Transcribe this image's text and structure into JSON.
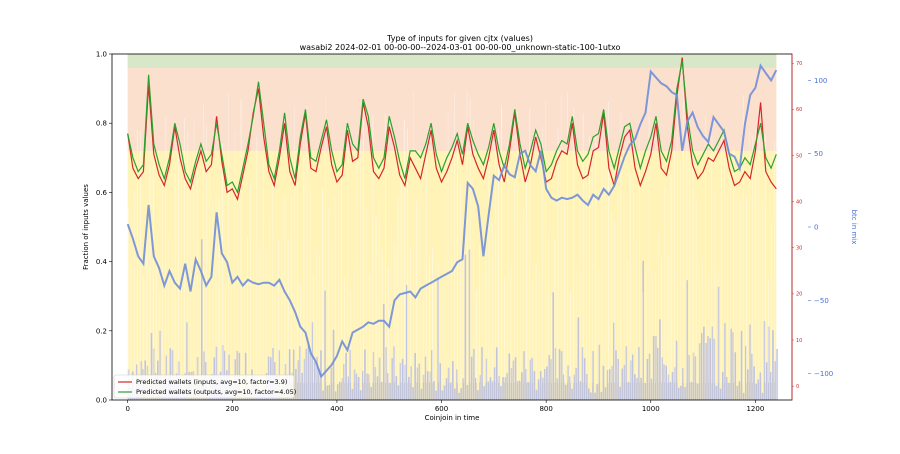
{
  "chart_data": {
    "type": "line",
    "title": "Type of inputs for given cjtx (values)",
    "subtitle": "wasabi2 2024-02-01 00-00-00--2024-03-01 00-00-00_unknown-static-100-1utxo",
    "xlabel": "Coinjoin in time",
    "ylabel": "Fraction of inputs values",
    "y2label": "btc in mix",
    "xlim": [
      -30,
      1270
    ],
    "ylim": [
      0,
      1.0
    ],
    "y2lim": [
      -118,
      118
    ],
    "x_ticks": [
      "0",
      "200",
      "400",
      "600",
      "800",
      "1000",
      "1200"
    ],
    "y_ticks": [
      "0.0",
      "0.2",
      "0.4",
      "0.6",
      "0.8",
      "1.0"
    ],
    "y2_ticks": [
      "−100",
      "−50",
      "0",
      "50",
      "100"
    ],
    "y3_ticks": [
      "0",
      "10",
      "20",
      "30",
      "40",
      "50",
      "60",
      "70"
    ],
    "legend_position": "lower-left",
    "colors": {
      "red": "#d62728",
      "green": "#2ca02c",
      "blue_line": "#6f8ed8",
      "yellow_band": "#fff3b8",
      "pink_band": "#fbd9d6",
      "blue_bars": "#8f9cf6",
      "axis_right_blue": "#4a6fd8"
    },
    "series": [
      {
        "name": "Predicted wallets (inputs, avg=10, factor=3.9)",
        "color": "#d62728",
        "x": [
          0,
          10,
          20,
          30,
          40,
          50,
          60,
          70,
          80,
          90,
          100,
          110,
          120,
          130,
          140,
          150,
          160,
          170,
          180,
          190,
          200,
          210,
          220,
          230,
          240,
          250,
          260,
          270,
          280,
          290,
          300,
          310,
          320,
          330,
          340,
          350,
          360,
          370,
          380,
          390,
          400,
          410,
          420,
          430,
          440,
          450,
          460,
          470,
          480,
          490,
          500,
          510,
          520,
          530,
          540,
          550,
          560,
          570,
          580,
          590,
          600,
          610,
          620,
          630,
          640,
          650,
          660,
          670,
          680,
          690,
          700,
          710,
          720,
          730,
          740,
          750,
          760,
          770,
          780,
          790,
          800,
          810,
          820,
          830,
          840,
          850,
          860,
          870,
          880,
          890,
          900,
          910,
          920,
          930,
          940,
          950,
          960,
          970,
          980,
          990,
          1000,
          1010,
          1020,
          1030,
          1040,
          1050,
          1060,
          1070,
          1080,
          1090,
          1100,
          1110,
          1120,
          1130,
          1140,
          1150,
          1160,
          1170,
          1180,
          1190,
          1200,
          1210,
          1220,
          1230,
          1240
        ],
        "values": [
          0.77,
          0.67,
          0.64,
          0.66,
          0.91,
          0.71,
          0.65,
          0.62,
          0.68,
          0.79,
          0.7,
          0.64,
          0.61,
          0.67,
          0.72,
          0.66,
          0.68,
          0.82,
          0.69,
          0.6,
          0.61,
          0.58,
          0.65,
          0.72,
          0.83,
          0.9,
          0.76,
          0.66,
          0.62,
          0.7,
          0.8,
          0.66,
          0.62,
          0.74,
          0.83,
          0.67,
          0.66,
          0.73,
          0.79,
          0.68,
          0.63,
          0.65,
          0.78,
          0.69,
          0.7,
          0.86,
          0.79,
          0.66,
          0.64,
          0.67,
          0.79,
          0.73,
          0.65,
          0.62,
          0.7,
          0.67,
          0.64,
          0.71,
          0.78,
          0.67,
          0.63,
          0.66,
          0.7,
          0.75,
          0.68,
          0.79,
          0.71,
          0.67,
          0.64,
          0.7,
          0.78,
          0.68,
          0.63,
          0.72,
          0.83,
          0.71,
          0.63,
          0.68,
          0.76,
          0.7,
          0.63,
          0.64,
          0.69,
          0.72,
          0.71,
          0.8,
          0.68,
          0.64,
          0.65,
          0.72,
          0.73,
          0.83,
          0.67,
          0.62,
          0.7,
          0.76,
          0.78,
          0.67,
          0.62,
          0.66,
          0.71,
          0.8,
          0.67,
          0.65,
          0.72,
          0.88,
          0.99,
          0.79,
          0.68,
          0.64,
          0.66,
          0.7,
          0.69,
          0.72,
          0.75,
          0.67,
          0.62,
          0.63,
          0.66,
          0.64,
          0.72,
          0.86,
          0.66,
          0.63,
          0.61
        ]
      },
      {
        "name": "Predicted wallets (outputs, avg=10, factor=4.05)",
        "color": "#2ca02c",
        "x": [
          0,
          10,
          20,
          30,
          40,
          50,
          60,
          70,
          80,
          90,
          100,
          110,
          120,
          130,
          140,
          150,
          160,
          170,
          180,
          190,
          200,
          210,
          220,
          230,
          240,
          250,
          260,
          270,
          280,
          290,
          300,
          310,
          320,
          330,
          340,
          350,
          360,
          370,
          380,
          390,
          400,
          410,
          420,
          430,
          440,
          450,
          460,
          470,
          480,
          490,
          500,
          510,
          520,
          530,
          540,
          550,
          560,
          570,
          580,
          590,
          600,
          610,
          620,
          630,
          640,
          650,
          660,
          670,
          680,
          690,
          700,
          710,
          720,
          730,
          740,
          750,
          760,
          770,
          780,
          790,
          800,
          810,
          820,
          830,
          840,
          850,
          860,
          870,
          880,
          890,
          900,
          910,
          920,
          930,
          940,
          950,
          960,
          970,
          980,
          990,
          1000,
          1010,
          1020,
          1030,
          1040,
          1050,
          1060,
          1070,
          1080,
          1090,
          1100,
          1110,
          1120,
          1130,
          1140,
          1150,
          1160,
          1170,
          1180,
          1190,
          1200,
          1210,
          1220,
          1230,
          1240
        ],
        "values": [
          0.77,
          0.7,
          0.66,
          0.68,
          0.94,
          0.74,
          0.68,
          0.64,
          0.7,
          0.8,
          0.74,
          0.66,
          0.63,
          0.69,
          0.74,
          0.69,
          0.71,
          0.8,
          0.71,
          0.62,
          0.63,
          0.6,
          0.67,
          0.74,
          0.82,
          0.92,
          0.8,
          0.68,
          0.64,
          0.72,
          0.83,
          0.7,
          0.64,
          0.76,
          0.84,
          0.7,
          0.69,
          0.75,
          0.81,
          0.72,
          0.66,
          0.68,
          0.8,
          0.74,
          0.72,
          0.87,
          0.82,
          0.7,
          0.67,
          0.7,
          0.82,
          0.76,
          0.69,
          0.64,
          0.72,
          0.72,
          0.7,
          0.74,
          0.8,
          0.71,
          0.66,
          0.7,
          0.73,
          0.77,
          0.71,
          0.8,
          0.75,
          0.71,
          0.68,
          0.73,
          0.8,
          0.72,
          0.67,
          0.74,
          0.84,
          0.74,
          0.67,
          0.72,
          0.78,
          0.74,
          0.66,
          0.68,
          0.72,
          0.75,
          0.74,
          0.82,
          0.72,
          0.69,
          0.71,
          0.76,
          0.77,
          0.84,
          0.72,
          0.67,
          0.73,
          0.79,
          0.8,
          0.73,
          0.67,
          0.72,
          0.76,
          0.82,
          0.72,
          0.69,
          0.75,
          0.9,
          0.98,
          0.82,
          0.72,
          0.68,
          0.71,
          0.74,
          0.72,
          0.75,
          0.78,
          0.71,
          0.66,
          0.67,
          0.7,
          0.68,
          0.74,
          0.8,
          0.7,
          0.67,
          0.71
        ]
      },
      {
        "name": "btc in mix",
        "color": "#6f8ed8",
        "axis": "right",
        "x": [
          0,
          10,
          20,
          30,
          40,
          50,
          60,
          70,
          80,
          90,
          100,
          110,
          120,
          130,
          140,
          150,
          160,
          170,
          180,
          190,
          200,
          210,
          220,
          230,
          240,
          250,
          260,
          270,
          280,
          290,
          300,
          310,
          320,
          330,
          340,
          350,
          360,
          370,
          380,
          390,
          400,
          410,
          420,
          430,
          440,
          450,
          460,
          470,
          480,
          490,
          500,
          510,
          520,
          530,
          540,
          550,
          560,
          570,
          580,
          590,
          600,
          610,
          620,
          630,
          640,
          650,
          660,
          670,
          680,
          690,
          700,
          710,
          720,
          730,
          740,
          750,
          760,
          770,
          780,
          790,
          800,
          810,
          820,
          830,
          840,
          850,
          860,
          870,
          880,
          890,
          900,
          910,
          920,
          930,
          940,
          950,
          960,
          970,
          980,
          990,
          1000,
          1010,
          1020,
          1030,
          1040,
          1050,
          1060,
          1070,
          1080,
          1090,
          1100,
          1110,
          1120,
          1130,
          1140,
          1150,
          1160,
          1170,
          1180,
          1190,
          1200,
          1210,
          1220,
          1230,
          1240
        ],
        "values": [
          2,
          -8,
          -20,
          -25,
          15,
          -20,
          -28,
          -40,
          -30,
          -38,
          -42,
          -25,
          -44,
          -22,
          -30,
          -40,
          -34,
          10,
          -18,
          -24,
          -38,
          -34,
          -40,
          -36,
          -38,
          -39,
          -38,
          -38,
          -40,
          -36,
          -44,
          -50,
          -58,
          -68,
          -72,
          -86,
          -92,
          -102,
          -98,
          -94,
          -88,
          -78,
          -84,
          -72,
          -70,
          -68,
          -65,
          -66,
          -64,
          -64,
          -68,
          -50,
          -46,
          -45,
          -44,
          -48,
          -42,
          -40,
          -38,
          -36,
          -34,
          -32,
          -30,
          -24,
          -22,
          30,
          26,
          14,
          -20,
          8,
          35,
          32,
          42,
          36,
          34,
          50,
          52,
          42,
          38,
          52,
          26,
          20,
          18,
          20,
          19,
          20,
          22,
          18,
          15,
          22,
          19,
          26,
          22,
          28,
          38,
          48,
          56,
          60,
          70,
          78,
          106,
          102,
          98,
          96,
          92,
          90,
          52,
          72,
          78,
          68,
          62,
          58,
          75,
          70,
          65,
          50,
          48,
          40,
          70,
          90,
          95,
          110,
          105,
          100,
          107
        ]
      }
    ]
  }
}
